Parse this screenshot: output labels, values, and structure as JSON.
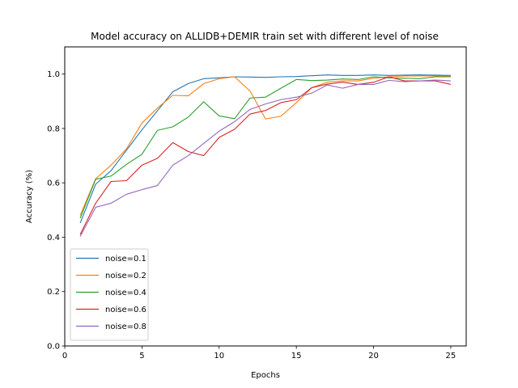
{
  "chart_data": {
    "type": "line",
    "title": "Model accuracy on ALLIDB+DEMIR train set with different level of noise",
    "xlabel": "Epochs",
    "ylabel": "Accuracy (%)",
    "xlim": [
      0,
      26
    ],
    "ylim": [
      0.0,
      1.1
    ],
    "xticks": [
      0,
      5,
      10,
      15,
      20,
      25
    ],
    "yticks": [
      0.0,
      0.2,
      0.4,
      0.6,
      0.8,
      1.0
    ],
    "xtick_labels": [
      "0",
      "5",
      "10",
      "15",
      "20",
      "25"
    ],
    "ytick_labels": [
      "0.0",
      "0.2",
      "0.4",
      "0.6",
      "0.8",
      "1.0"
    ],
    "grid": false,
    "legend_position": "lower-left",
    "x": [
      1,
      2,
      3,
      4,
      5,
      6,
      7,
      8,
      9,
      10,
      11,
      12,
      13,
      14,
      15,
      16,
      17,
      18,
      19,
      20,
      21,
      22,
      23,
      24,
      25
    ],
    "series": [
      {
        "name": "noise=0.1",
        "color": "#1f77b4",
        "values": [
          0.452,
          0.595,
          0.645,
          0.72,
          0.795,
          0.865,
          0.935,
          0.965,
          0.983,
          0.986,
          0.99,
          0.989,
          0.988,
          0.99,
          0.991,
          0.994,
          0.997,
          0.995,
          0.995,
          0.997,
          0.995,
          0.996,
          0.997,
          0.996,
          0.995
        ]
      },
      {
        "name": "noise=0.2",
        "color": "#ff7f0e",
        "values": [
          0.48,
          0.615,
          0.665,
          0.725,
          0.82,
          0.875,
          0.922,
          0.92,
          0.965,
          0.983,
          0.99,
          0.938,
          0.835,
          0.845,
          0.895,
          0.95,
          0.97,
          0.975,
          0.975,
          0.985,
          0.99,
          0.993,
          0.993,
          0.993,
          0.993
        ]
      },
      {
        "name": "noise=0.4",
        "color": "#2ca02c",
        "values": [
          0.47,
          0.613,
          0.625,
          0.668,
          0.705,
          0.793,
          0.806,
          0.842,
          0.898,
          0.846,
          0.836,
          0.912,
          0.915,
          0.948,
          0.98,
          0.976,
          0.978,
          0.982,
          0.98,
          0.99,
          0.986,
          0.985,
          0.983,
          0.99,
          0.99
        ]
      },
      {
        "name": "noise=0.6",
        "color": "#d62728",
        "values": [
          0.41,
          0.525,
          0.605,
          0.608,
          0.665,
          0.69,
          0.748,
          0.715,
          0.7,
          0.767,
          0.797,
          0.853,
          0.866,
          0.895,
          0.906,
          0.95,
          0.963,
          0.97,
          0.962,
          0.97,
          0.99,
          0.975,
          0.975,
          0.975,
          0.962
        ]
      },
      {
        "name": "noise=0.8",
        "color": "#9467bd",
        "values": [
          0.403,
          0.51,
          0.525,
          0.558,
          0.575,
          0.59,
          0.665,
          0.7,
          0.745,
          0.79,
          0.825,
          0.87,
          0.89,
          0.906,
          0.915,
          0.93,
          0.96,
          0.948,
          0.962,
          0.962,
          0.977,
          0.972,
          0.975,
          0.978,
          0.975
        ]
      }
    ]
  }
}
